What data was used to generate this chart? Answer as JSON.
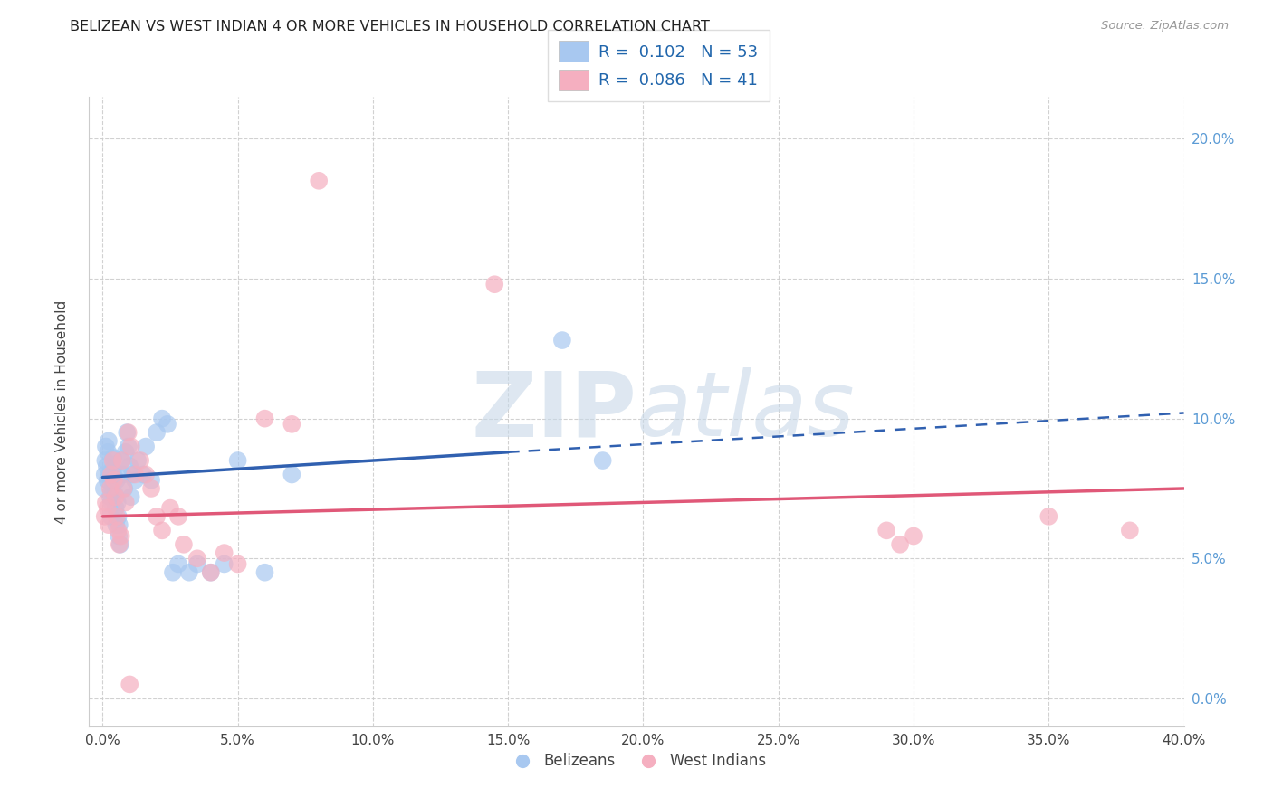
{
  "title": "BELIZEAN VS WEST INDIAN 4 OR MORE VEHICLES IN HOUSEHOLD CORRELATION CHART",
  "source": "Source: ZipAtlas.com",
  "ylabel": "4 or more Vehicles in Household",
  "x_tick_values": [
    0.0,
    5.0,
    10.0,
    15.0,
    20.0,
    25.0,
    30.0,
    35.0,
    40.0
  ],
  "y_tick_values": [
    0.0,
    5.0,
    10.0,
    15.0,
    20.0
  ],
  "xlim": [
    -0.5,
    40.0
  ],
  "ylim": [
    -1.0,
    21.5
  ],
  "legend_blue_label": "R =  0.102   N = 53",
  "legend_pink_label": "R =  0.086   N = 41",
  "scatter_blue_color": "#a8c8f0",
  "scatter_pink_color": "#f5afc0",
  "trend_blue_color": "#3060b0",
  "trend_pink_color": "#e05878",
  "watermark_zip": "ZIP",
  "watermark_atlas": "atlas",
  "legend_label_blue": "Belizeans",
  "legend_label_pink": "West Indians",
  "blue_x": [
    0.05,
    0.08,
    0.1,
    0.12,
    0.15,
    0.18,
    0.2,
    0.22,
    0.25,
    0.28,
    0.3,
    0.32,
    0.35,
    0.38,
    0.4,
    0.42,
    0.45,
    0.48,
    0.5,
    0.52,
    0.55,
    0.58,
    0.6,
    0.62,
    0.65,
    0.7,
    0.75,
    0.8,
    0.85,
    0.9,
    0.95,
    1.0,
    1.05,
    1.1,
    1.2,
    1.3,
    1.5,
    1.6,
    1.8,
    2.0,
    2.2,
    2.4,
    2.6,
    2.8,
    3.2,
    3.5,
    4.0,
    4.5,
    5.0,
    6.0,
    7.0,
    17.0,
    18.5
  ],
  "blue_y": [
    7.5,
    8.0,
    8.5,
    9.0,
    8.3,
    7.8,
    8.8,
    9.2,
    8.0,
    7.2,
    6.5,
    7.0,
    7.5,
    8.2,
    8.6,
    8.0,
    7.3,
    6.8,
    6.2,
    7.8,
    7.0,
    6.5,
    5.8,
    6.2,
    5.5,
    8.5,
    8.0,
    7.5,
    8.8,
    9.5,
    9.0,
    8.3,
    7.2,
    8.0,
    7.8,
    8.5,
    8.0,
    9.0,
    7.8,
    9.5,
    10.0,
    9.8,
    4.5,
    4.8,
    4.5,
    4.8,
    4.5,
    4.8,
    8.5,
    4.5,
    8.0,
    12.8,
    8.5
  ],
  "pink_x": [
    0.08,
    0.12,
    0.18,
    0.22,
    0.28,
    0.32,
    0.38,
    0.42,
    0.48,
    0.52,
    0.58,
    0.62,
    0.68,
    0.72,
    0.78,
    0.85,
    0.95,
    1.05,
    1.2,
    1.4,
    1.6,
    1.8,
    2.0,
    2.2,
    2.5,
    2.8,
    3.0,
    3.5,
    4.0,
    4.5,
    5.0,
    6.0,
    7.0,
    8.0,
    14.5,
    29.0,
    29.5,
    30.0,
    35.0,
    38.0,
    1.0
  ],
  "pink_y": [
    6.5,
    7.0,
    6.8,
    6.2,
    7.5,
    8.0,
    8.5,
    7.8,
    7.2,
    6.5,
    6.0,
    5.5,
    5.8,
    8.5,
    7.5,
    7.0,
    9.5,
    9.0,
    8.0,
    8.5,
    8.0,
    7.5,
    6.5,
    6.0,
    6.8,
    6.5,
    5.5,
    5.0,
    4.5,
    5.2,
    4.8,
    10.0,
    9.8,
    18.5,
    14.8,
    6.0,
    5.5,
    5.8,
    6.5,
    6.0,
    0.5
  ],
  "blue_trend_x0": 0.0,
  "blue_trend_y0": 7.9,
  "blue_trend_x1": 15.0,
  "blue_trend_y1": 8.8,
  "blue_dash_x0": 15.0,
  "blue_dash_y0": 8.8,
  "blue_dash_x1": 40.0,
  "blue_dash_y1": 10.2,
  "pink_trend_x0": 0.0,
  "pink_trend_y0": 6.5,
  "pink_trend_x1": 40.0,
  "pink_trend_y1": 7.5
}
